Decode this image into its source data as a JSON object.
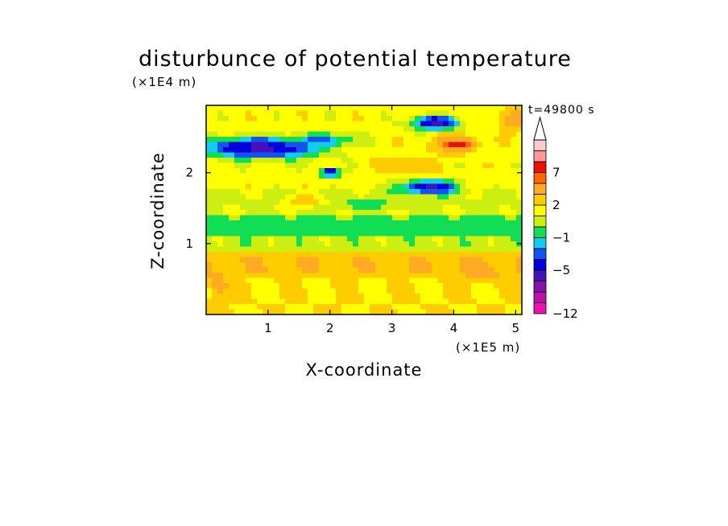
{
  "chart_data": {
    "type": "heatmap",
    "title": "disturbunce of potential temperature",
    "xlabel": "X-coordinate",
    "ylabel": "Z-coordinate",
    "x_unit": "(×1E5 m)",
    "y_unit": "(×1E4 m)",
    "time_label": "t=49800 s",
    "xlim": [
      0,
      5.1
    ],
    "ylim": [
      0,
      2.95
    ],
    "x_ticks": [
      "1",
      "2",
      "3",
      "4",
      "5"
    ],
    "x_tick_values": [
      1,
      2,
      3,
      4,
      5
    ],
    "y_ticks": [
      "1",
      "2"
    ],
    "y_tick_values": [
      1,
      2
    ],
    "colorbar": {
      "levels": [
        -12,
        -10,
        -8,
        -6,
        -5,
        -3,
        -2,
        -1,
        0,
        1,
        2,
        3,
        5,
        7,
        9,
        11
      ],
      "labels": [
        "-12",
        "-5",
        "-1",
        "2",
        "7"
      ],
      "label_values": [
        -12,
        -5,
        -1,
        2,
        7
      ],
      "colors": [
        "#ee11aa",
        "#bb11aa",
        "#8811aa",
        "#4411bb",
        "#0000dd",
        "#1155ee",
        "#11ccee",
        "#11dd55",
        "#ccee11",
        "#ffff00",
        "#ffcc00",
        "#ffaa22",
        "#ff6600",
        "#ee1100",
        "#ff9999",
        "#ffcccc"
      ],
      "extend": "max"
    },
    "fields": [
      {
        "kind": "band",
        "zmin": 0.0,
        "zmax": 0.55,
        "value": 2.0
      },
      {
        "kind": "band",
        "zmin": 0.55,
        "zmax": 0.85,
        "value": 2.8
      },
      {
        "kind": "band",
        "zmin": 0.85,
        "zmax": 1.12,
        "value": 0.5
      },
      {
        "kind": "band",
        "zmin": 1.12,
        "zmax": 1.4,
        "value": -0.4
      },
      {
        "kind": "band",
        "zmin": 1.4,
        "zmax": 1.8,
        "value": 0.8
      },
      {
        "kind": "band",
        "zmin": 1.8,
        "zmax": 2.95,
        "value": 1.5
      },
      {
        "kind": "blob",
        "x": 0.9,
        "z": 2.35,
        "rx": 0.9,
        "rz": 0.14,
        "value": -5.5
      },
      {
        "kind": "blob",
        "x": 0.5,
        "z": 2.35,
        "rx": 0.35,
        "rz": 0.12,
        "value": -5.5
      },
      {
        "kind": "blob",
        "x": 1.9,
        "z": 2.45,
        "rx": 0.5,
        "rz": 0.1,
        "value": -2.5
      },
      {
        "kind": "blob",
        "x": 3.6,
        "z": 1.8,
        "rx": 0.45,
        "rz": 0.09,
        "value": -5.5
      },
      {
        "kind": "blob",
        "x": 3.7,
        "z": 2.7,
        "rx": 0.35,
        "rz": 0.09,
        "value": -5.5
      },
      {
        "kind": "blob",
        "x": 4.05,
        "z": 2.4,
        "rx": 0.3,
        "rz": 0.08,
        "value": 7.5
      },
      {
        "kind": "blob",
        "x": 4.0,
        "z": 2.4,
        "rx": 0.45,
        "rz": 0.13,
        "value": 4.0
      },
      {
        "kind": "blob",
        "x": 3.2,
        "z": 2.1,
        "rx": 0.35,
        "rz": 0.1,
        "value": 3.5
      },
      {
        "kind": "blob",
        "x": 1.6,
        "z": 1.6,
        "rx": 0.3,
        "rz": 0.08,
        "value": 3.0
      },
      {
        "kind": "blob",
        "x": 2.6,
        "z": 1.55,
        "rx": 0.5,
        "rz": 0.08,
        "value": -0.6
      },
      {
        "kind": "blob",
        "x": 2.0,
        "z": 2.0,
        "rx": 0.15,
        "rz": 0.06,
        "value": -5.5
      },
      {
        "kind": "blob",
        "x": 0.2,
        "z": 0.4,
        "rx": 0.15,
        "rz": 0.15,
        "value": 4.0
      },
      {
        "kind": "blob",
        "x": 4.5,
        "z": 0.6,
        "rx": 0.5,
        "rz": 0.12,
        "value": 3.2
      },
      {
        "kind": "blob",
        "x": 4.95,
        "z": 2.75,
        "rx": 0.2,
        "rz": 0.15,
        "value": 4.0
      }
    ]
  }
}
